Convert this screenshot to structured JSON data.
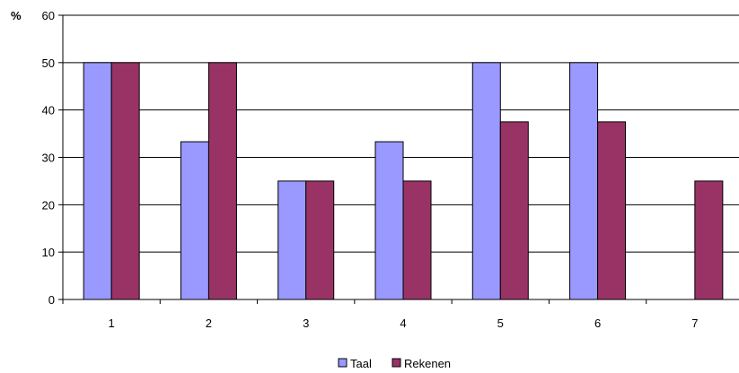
{
  "chart_data": {
    "type": "bar",
    "ylabel": "%",
    "ylim": [
      0,
      60
    ],
    "yticks": [
      0,
      10,
      20,
      30,
      40,
      50,
      60
    ],
    "grid": true,
    "legend_position": "bottom",
    "categories": [
      "1",
      "2",
      "3",
      "4",
      "5",
      "6",
      "7"
    ],
    "series": [
      {
        "name": "Taal",
        "color": "#9999ff",
        "values": [
          50,
          33.3,
          25,
          33.3,
          50,
          50,
          null
        ]
      },
      {
        "name": "Rekenen",
        "color": "#993366",
        "values": [
          50,
          50,
          25,
          25,
          37.5,
          37.5,
          25
        ]
      }
    ]
  }
}
